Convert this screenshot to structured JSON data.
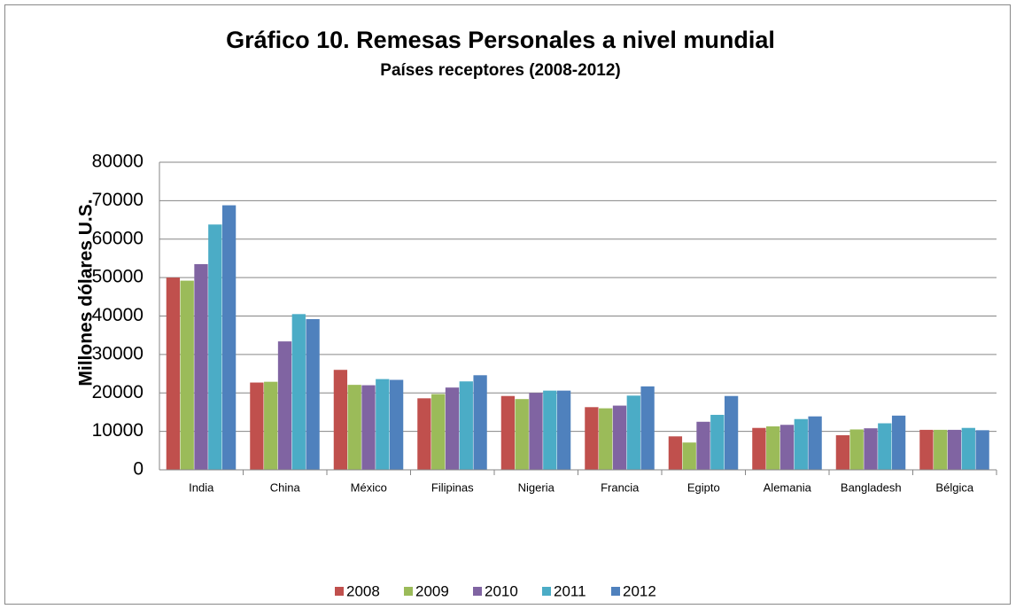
{
  "chart_data": {
    "type": "bar",
    "title": "Gráfico 10. Remesas Personales a nivel mundial",
    "subtitle": "Países receptores (2008-2012)",
    "y_label": "Millones dólares U.S.",
    "categories": [
      "India",
      "China",
      "México",
      "Filipinas",
      "Nigeria",
      "Francia",
      "Egipto",
      "Alemania",
      "Bangladesh",
      "Bélgica"
    ],
    "series": [
      {
        "name": "2008",
        "color": "#c0504d",
        "values": [
          50000,
          22700,
          26000,
          18600,
          19200,
          16300,
          8700,
          10900,
          9000,
          10400
        ]
      },
      {
        "name": "2009",
        "color": "#9bbb59",
        "values": [
          49200,
          22900,
          22100,
          19700,
          18400,
          16000,
          7100,
          11300,
          10500,
          10400
        ]
      },
      {
        "name": "2010",
        "color": "#8064a2",
        "values": [
          53500,
          33400,
          22000,
          21400,
          20000,
          16700,
          12500,
          11700,
          10800,
          10400
        ]
      },
      {
        "name": "2011",
        "color": "#4bacc6",
        "values": [
          63800,
          40500,
          23600,
          23000,
          20600,
          19300,
          14300,
          13200,
          12100,
          10900
        ]
      },
      {
        "name": "2012",
        "color": "#4f81bd",
        "values": [
          68800,
          39200,
          23400,
          24600,
          20600,
          21700,
          19200,
          13900,
          14100,
          10300
        ]
      }
    ],
    "ylim": [
      0,
      80000
    ],
    "yticks": [
      0,
      10000,
      20000,
      30000,
      40000,
      50000,
      60000,
      70000,
      80000
    ],
    "grid": true,
    "legend": "bottom"
  }
}
